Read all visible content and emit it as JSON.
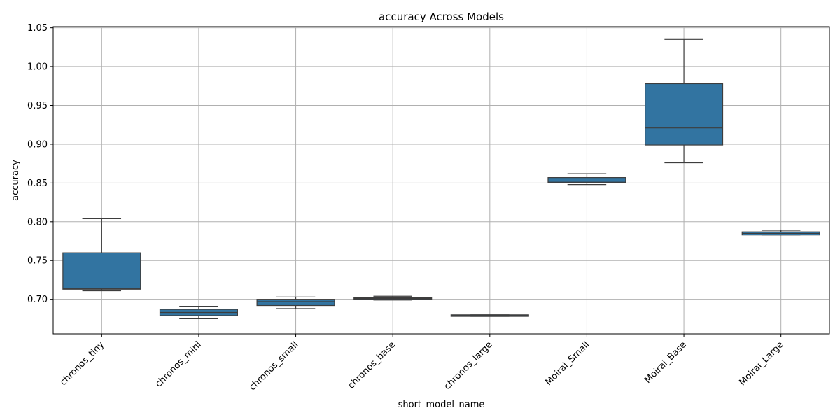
{
  "chart_data": {
    "type": "box",
    "title": "accuracy Across Models",
    "xlabel": "short_model_name",
    "ylabel": "accuracy",
    "ylim": [
      0.6555,
      1.0515
    ],
    "yticks": [
      0.7,
      0.75,
      0.8,
      0.85,
      0.9,
      0.95,
      1.0,
      1.05
    ],
    "ytick_labels": [
      "0.70",
      "0.75",
      "0.80",
      "0.85",
      "0.90",
      "0.95",
      "1.00",
      "1.05"
    ],
    "grid": true,
    "box_color": "#3274a1",
    "line_color": "#3d3d3d",
    "grid_color": "#b0b0b0",
    "categories": [
      "chronos_tiny",
      "chronos_mini",
      "chronos_small",
      "chronos_base",
      "chronos_large",
      "Moirai_Small",
      "Moirai_Base",
      "Moirai_Large"
    ],
    "boxes": [
      {
        "whislo": 0.711,
        "q1": 0.713,
        "med": 0.714,
        "q3": 0.76,
        "whishi": 0.804
      },
      {
        "whislo": 0.675,
        "q1": 0.679,
        "med": 0.683,
        "q3": 0.687,
        "whishi": 0.691
      },
      {
        "whislo": 0.688,
        "q1": 0.692,
        "med": 0.697,
        "q3": 0.7,
        "whishi": 0.703
      },
      {
        "whislo": 0.699,
        "q1": 0.7,
        "med": 0.701,
        "q3": 0.702,
        "whishi": 0.704
      },
      {
        "whislo": 0.678,
        "q1": 0.678,
        "med": 0.679,
        "q3": 0.68,
        "whishi": 0.68
      },
      {
        "whislo": 0.848,
        "q1": 0.85,
        "med": 0.851,
        "q3": 0.857,
        "whishi": 0.862
      },
      {
        "whislo": 0.876,
        "q1": 0.899,
        "med": 0.921,
        "q3": 0.978,
        "whishi": 1.035
      },
      {
        "whislo": 0.783,
        "q1": 0.783,
        "med": 0.785,
        "q3": 0.787,
        "whishi": 0.789
      }
    ]
  }
}
